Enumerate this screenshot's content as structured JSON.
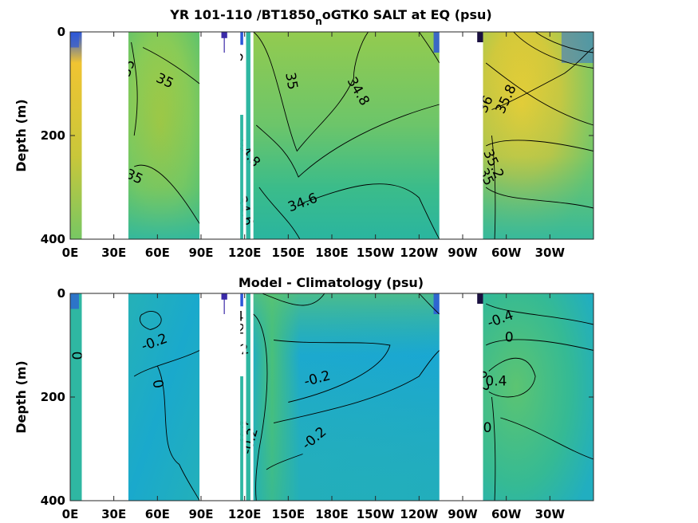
{
  "colors": {
    "ocean_high": "#f4c832",
    "ocean_midhigh": "#b7c93c",
    "ocean_mid": "#8ccc55",
    "ocean_midlow": "#4fc07a",
    "ocean_low": "#2fb7a2",
    "ocean_verylow": "#1aa7d1",
    "ocean_deep": "#2c57d9",
    "ocean_min": "#3a2aa8",
    "land": "#ffffff",
    "contour": "#000000"
  },
  "chart_data": [
    {
      "type": "heatmap",
      "title_main": "YR 101-110 /BT1850",
      "title_sub": "n",
      "title_tail": "oGTK0 SALT at EQ (psu)",
      "xlabel": "",
      "ylabel": "Depth (m)",
      "x_tick_labels": [
        "0E",
        "30E",
        "60E",
        "90E",
        "120E",
        "150E",
        "180E",
        "150W",
        "120W",
        "90W",
        "60W",
        "30W"
      ],
      "x_ticks_deg": [
        0,
        30,
        60,
        90,
        120,
        150,
        180,
        210,
        240,
        270,
        300,
        330
      ],
      "xlim": [
        0,
        360
      ],
      "y_tick_labels": [
        "0",
        "200",
        "400"
      ],
      "y_ticks": [
        0,
        200,
        400
      ],
      "ylim": [
        400,
        0
      ],
      "contour_labels": [
        {
          "text": "35",
          "lon": 40,
          "depth": 70,
          "angle": -70
        },
        {
          "text": "35",
          "lon": 65,
          "depth": 95,
          "angle": 25
        },
        {
          "text": "35",
          "lon": 44,
          "depth": 280,
          "angle": 25
        },
        {
          "text": "35",
          "lon": 115,
          "depth": 55,
          "angle": -70
        },
        {
          "text": "35",
          "lon": 152,
          "depth": 95,
          "angle": 80
        },
        {
          "text": "34.8",
          "lon": 198,
          "depth": 115,
          "angle": 60
        },
        {
          "text": "34.8",
          "lon": 122,
          "depth": 235,
          "angle": 50
        },
        {
          "text": "34.6",
          "lon": 120,
          "depth": 345,
          "angle": 75
        },
        {
          "text": "34.6",
          "lon": 160,
          "depth": 330,
          "angle": -20
        },
        {
          "text": "35.8",
          "lon": 300,
          "depth": 130,
          "angle": -65
        },
        {
          "text": "36",
          "lon": 286,
          "depth": 140,
          "angle": -65
        },
        {
          "text": "35.2",
          "lon": 291,
          "depth": 255,
          "angle": 65
        },
        {
          "text": "35",
          "lon": 286,
          "depth": 280,
          "angle": 65
        }
      ]
    },
    {
      "type": "heatmap",
      "title": "Model - Climatology (psu)",
      "xlabel": "",
      "ylabel": "Depth (m)",
      "x_tick_labels": [
        "0E",
        "30E",
        "60E",
        "90E",
        "120E",
        "150E",
        "180E",
        "150W",
        "120W",
        "90W",
        "60W",
        "30W"
      ],
      "x_ticks_deg": [
        0,
        30,
        60,
        90,
        120,
        150,
        180,
        210,
        240,
        270,
        300,
        330
      ],
      "xlim": [
        0,
        360
      ],
      "y_tick_labels": [
        "0",
        "200",
        "400"
      ],
      "y_ticks": [
        0,
        200,
        400
      ],
      "ylim": [
        400,
        0
      ],
      "contour_labels": [
        {
          "text": "0",
          "lon": 4,
          "depth": 120,
          "angle": 90
        },
        {
          "text": "-0.2",
          "lon": 58,
          "depth": 95,
          "angle": -20
        },
        {
          "text": "0",
          "lon": 60,
          "depth": 175,
          "angle": 80
        },
        {
          "text": "0",
          "lon": 104,
          "depth": 35,
          "angle": 70
        },
        {
          "text": "0.4",
          "lon": 112,
          "depth": 45,
          "angle": 0
        },
        {
          "text": "0.2",
          "lon": 113,
          "depth": 70,
          "angle": 0
        },
        {
          "text": "0",
          "lon": 110,
          "depth": 90,
          "angle": 0
        },
        {
          "text": "-0.2",
          "lon": 114,
          "depth": 112,
          "angle": -10
        },
        {
          "text": "-0.2",
          "lon": 170,
          "depth": 165,
          "angle": -15
        },
        {
          "text": "-0.2",
          "lon": 168,
          "depth": 280,
          "angle": -40
        },
        {
          "text": "-0.2",
          "lon": 124,
          "depth": 285,
          "angle": -75
        },
        {
          "text": "-0.4",
          "lon": 118,
          "depth": 270,
          "angle": -75
        },
        {
          "text": "-0.4",
          "lon": 296,
          "depth": 50,
          "angle": -20
        },
        {
          "text": "0",
          "lon": 302,
          "depth": 85,
          "angle": 0
        },
        {
          "text": "-0.2",
          "lon": 283,
          "depth": 165,
          "angle": 80
        },
        {
          "text": "0.4",
          "lon": 293,
          "depth": 170,
          "angle": 0
        },
        {
          "text": "0",
          "lon": 287,
          "depth": 260,
          "angle": 0
        }
      ]
    }
  ]
}
